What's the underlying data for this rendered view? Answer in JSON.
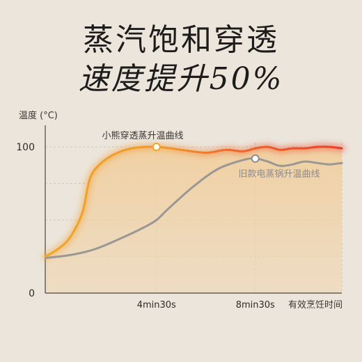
{
  "headline": {
    "line1": "蒸汽饱和穿透",
    "line2": "速度提升50%"
  },
  "chart_data": {
    "type": "line",
    "ylabel": "温度 (°C)",
    "xlabel": "有效烹饪时间",
    "xlim": [
      0,
      12
    ],
    "ylim": [
      0,
      100
    ],
    "x_ticks": [
      {
        "value": 4.5,
        "label": "4min30s"
      },
      {
        "value": 8.5,
        "label": "8min30s"
      }
    ],
    "y_ticks": [
      {
        "value": 0,
        "label": "0"
      },
      {
        "value": 100,
        "label": "100"
      }
    ],
    "grid": true,
    "series": [
      {
        "name": "小熊穿透蒸升温曲线",
        "color": "#f0a52a",
        "hot_color": "#ec4a2a",
        "x": [
          0,
          0.5,
          1.0,
          1.5,
          1.8,
          2.2,
          2.8,
          3.5,
          4.5,
          5.5,
          6.5,
          7.3,
          8.0,
          8.5,
          9.0,
          9.5,
          10.0,
          10.5,
          11.0,
          11.5,
          12.0
        ],
        "y": [
          25,
          30,
          38,
          55,
          78,
          88,
          95,
          99,
          100,
          98,
          96,
          98,
          97,
          99,
          100,
          98,
          99,
          99,
          100,
          100,
          99
        ],
        "marker": {
          "x": 4.5,
          "y": 100
        }
      },
      {
        "name": "旧款电蒸锅升温曲线",
        "color": "#9a9794",
        "x": [
          0,
          1.0,
          2.0,
          3.0,
          4.0,
          4.5,
          5.0,
          6.0,
          7.0,
          8.0,
          8.5,
          9.0,
          9.5,
          10.0,
          10.5,
          11.0,
          11.5,
          12.0
        ],
        "y": [
          24,
          26,
          30,
          37,
          45,
          50,
          58,
          73,
          85,
          91,
          92,
          90,
          87,
          88,
          90,
          89,
          88,
          89
        ],
        "marker": {
          "x": 8.5,
          "y": 92
        }
      }
    ]
  }
}
